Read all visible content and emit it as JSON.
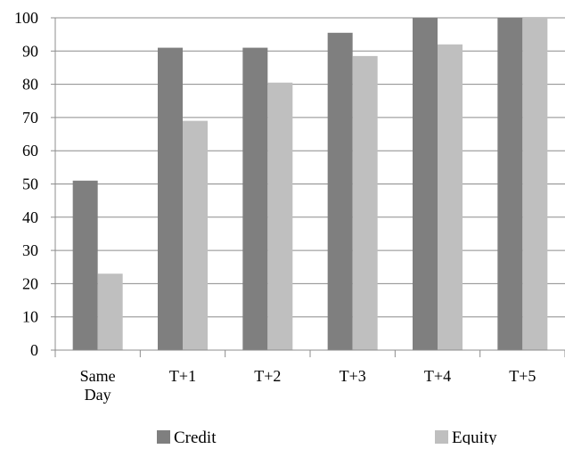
{
  "chart_data": {
    "type": "bar",
    "categories": [
      "Same Day",
      "T+1",
      "T+2",
      "T+3",
      "T+4",
      "T+5"
    ],
    "series": [
      {
        "name": "Credit",
        "values": [
          51,
          91,
          91,
          95.5,
          100,
          100
        ],
        "color": "#7f7f7f"
      },
      {
        "name": "Equity",
        "values": [
          23,
          69,
          80.5,
          88.5,
          92,
          100
        ],
        "color": "#bfbfbf"
      }
    ],
    "ylim": [
      0,
      100
    ],
    "yticks": [
      0,
      10,
      20,
      30,
      40,
      50,
      60,
      70,
      80,
      90,
      100
    ],
    "grid": true,
    "legend_position": "bottom"
  }
}
